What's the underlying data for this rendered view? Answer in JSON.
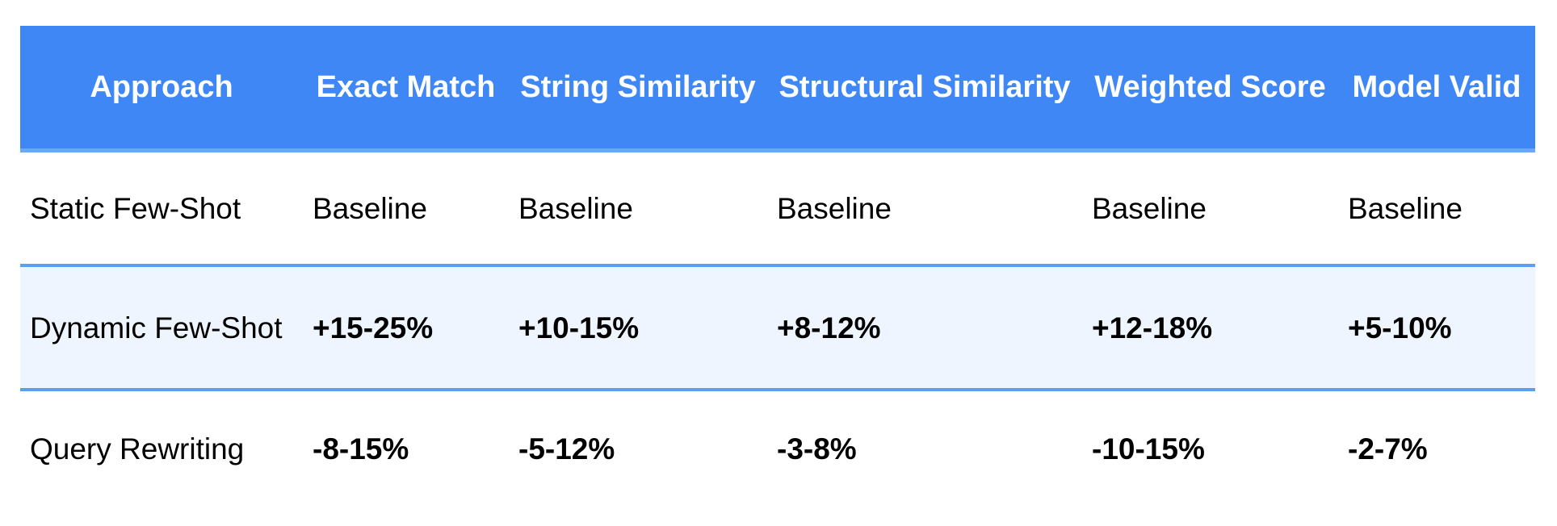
{
  "table": {
    "header": [
      "Approach",
      "Exact Match",
      "String Similarity",
      "Structural Similarity",
      "Weighted Score",
      "Model Valid"
    ],
    "rows": [
      [
        "Static Few-Shot",
        "Baseline",
        "Baseline",
        "Baseline",
        "Baseline",
        "Baseline"
      ],
      [
        "Dynamic Few-Shot",
        "+15-25%",
        "+10-15%",
        "+8-12%",
        "+12-18%",
        "+5-10%"
      ],
      [
        "Query Rewriting",
        "-8-15%",
        "-5-12%",
        "-3-8%",
        "-10-15%",
        "-2-7%"
      ]
    ]
  }
}
